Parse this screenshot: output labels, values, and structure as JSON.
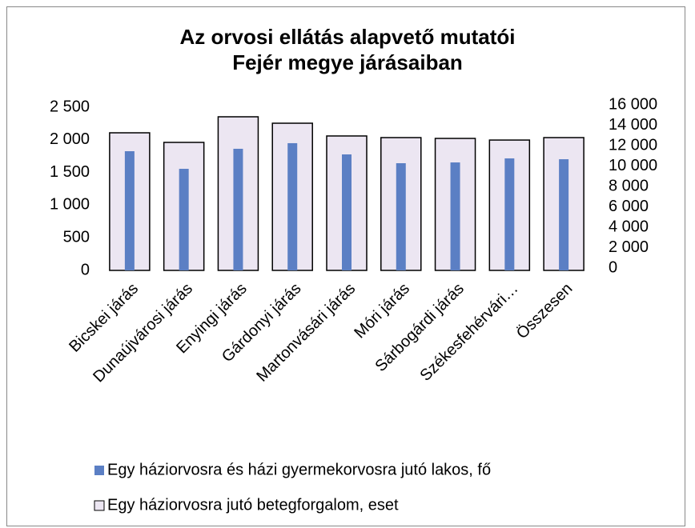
{
  "chart_data": {
    "type": "bar",
    "title": "Az orvosi ellátás alapvető mutatói Fejér megye járásaiban",
    "categories": [
      "Bicskei járás",
      "Dunaújvárosi járás",
      "Enyingi járás",
      "Gárdonyi járás",
      "Martonvásári járás",
      "Móri járás",
      "Sárbogárdi járás",
      "Székesfehérvári…",
      "Összesen"
    ],
    "series": [
      {
        "name": "Egy háziorvosra jutó betegforgalom, eset",
        "color": "#ece6f2",
        "axis": "y2",
        "values": [
          13490,
          12550,
          15060,
          14430,
          13180,
          13020,
          12940,
          12780,
          13020
        ]
      },
      {
        "name": "Egy háziorvosra és házi gyermekorvosra jutó lakos, fő",
        "color": "#5b7fc4",
        "values": [
          1826,
          1556,
          1863,
          1949,
          1777,
          1642,
          1654,
          1716,
          1703
        ]
      }
    ],
    "ylim": [
      0,
      2500
    ],
    "yticks": [
      0,
      500,
      {
        "value": 1000,
        "label": "1 000"
      },
      {
        "value": 1500,
        "label": "1 500"
      },
      {
        "value": 2000,
        "label": "2 000"
      },
      {
        "value": 2500,
        "label": "2 500"
      }
    ],
    "y2lim": [
      0,
      16000
    ],
    "y2ticks": [
      0,
      {
        "value": 2000,
        "label": "2 000"
      },
      {
        "value": 4000,
        "label": "4 000"
      },
      {
        "value": 6000,
        "label": "6 000"
      },
      {
        "value": 8000,
        "label": "8 000"
      },
      {
        "value": 10000,
        "label": "10 000"
      },
      {
        "value": 12000,
        "label": "12 000"
      },
      {
        "value": 14000,
        "label": "14 000"
      },
      {
        "value": 16000,
        "label": "16 000"
      }
    ],
    "legend": "bottom"
  }
}
